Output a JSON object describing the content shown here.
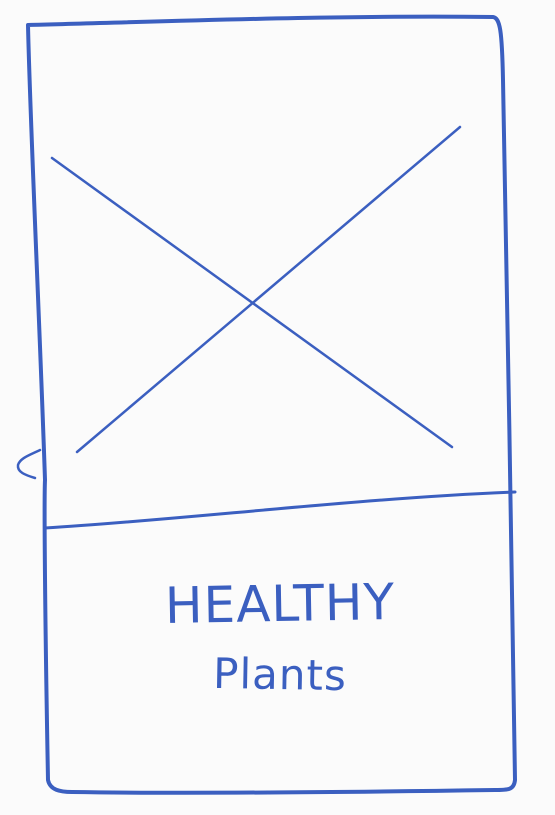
{
  "card": {
    "title": "HEALTHY",
    "subtitle": "Plants"
  },
  "colors": {
    "ink": "#3b5fc0",
    "paper": "#fbfbfb"
  },
  "image_area": {
    "placeholder": "image-placeholder"
  }
}
